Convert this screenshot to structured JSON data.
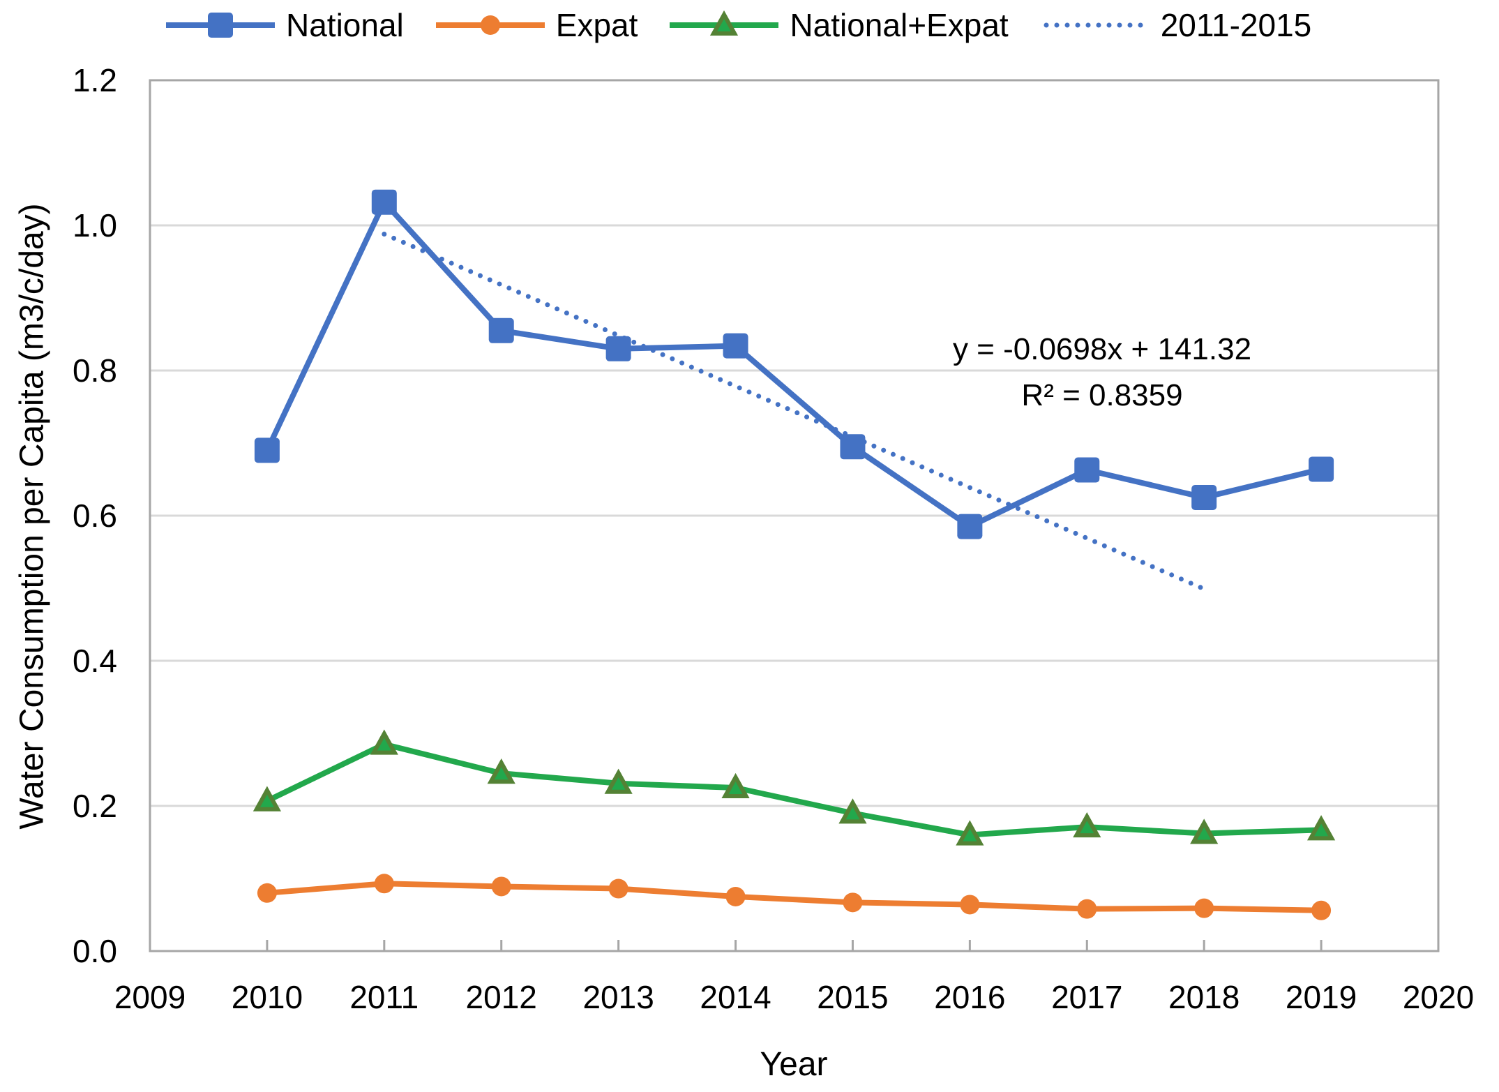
{
  "chart_data": {
    "type": "line",
    "title": "",
    "x_axis": {
      "title": "Year",
      "min": 2009,
      "max": 2020,
      "ticks": [
        2009,
        2010,
        2011,
        2012,
        2013,
        2014,
        2015,
        2016,
        2017,
        2018,
        2019,
        2020
      ]
    },
    "y_axis": {
      "title": "Water Consumption per Capita (m3/c/day)",
      "min": 0,
      "max": 1.2,
      "ticks": [
        0,
        0.2,
        0.4,
        0.6,
        0.8,
        1.0,
        1.2
      ],
      "tick_labels": [
        "0.0",
        "0.2",
        "0.4",
        "0.6",
        "0.8",
        "1.0",
        "1.2"
      ]
    },
    "grid": "horizontal-only",
    "legend_position": "top",
    "x": [
      2010,
      2011,
      2012,
      2013,
      2014,
      2015,
      2016,
      2017,
      2018,
      2019
    ],
    "series": [
      {
        "name": "National",
        "marker": "square",
        "color": "#4472C4",
        "values": [
          0.69,
          1.032,
          0.855,
          0.83,
          0.834,
          0.695,
          0.585,
          0.663,
          0.625,
          0.664
        ]
      },
      {
        "name": "Expat",
        "marker": "circle",
        "color": "#ED7D31",
        "values": [
          0.08,
          0.093,
          0.089,
          0.086,
          0.075,
          0.067,
          0.064,
          0.058,
          0.059,
          0.056
        ]
      },
      {
        "name": "National+Expat",
        "marker": "triangle",
        "color": "#22A84C",
        "marker_border": "#548235",
        "values": [
          0.207,
          0.285,
          0.245,
          0.231,
          0.225,
          0.19,
          0.16,
          0.171,
          0.162,
          0.167
        ]
      }
    ],
    "trendline": {
      "name": "2011-2015",
      "color": "#4472C4",
      "style": "dotted",
      "x_start": 2011,
      "y_start": 0.988,
      "x_end": 2018,
      "y_end": 0.499
    },
    "annotation": {
      "line1": "y = -0.0698x + 141.32",
      "line2": "R² = 0.8359"
    },
    "colors": {
      "gridline": "#D9D9D9",
      "axis": "#A6A6A6",
      "text": "#000000"
    }
  }
}
